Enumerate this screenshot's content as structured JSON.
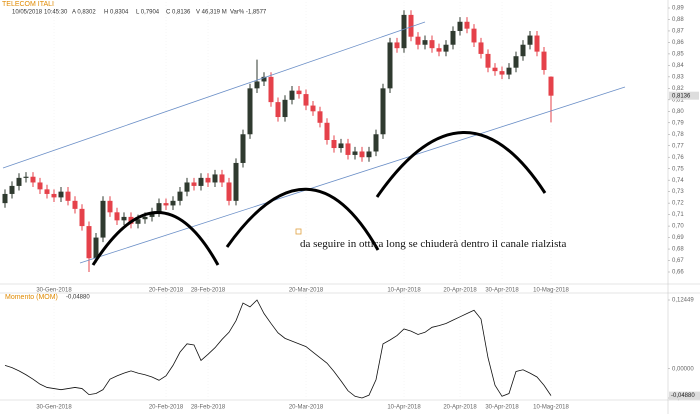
{
  "header": {
    "title": "TELECOM ITALI",
    "info": [
      "10/05/2018",
      "10:45:30",
      "A 0,8302",
      "H 0,8304",
      "L 0,7904",
      "C 0,8136",
      "V 46,319 M",
      "Var% -1,8577"
    ]
  },
  "chart_data": [
    {
      "type": "candlestick",
      "up_color": "#2f3a2f",
      "down_color": "#e5414a",
      "grid": false,
      "annotation": "da seguire in ottica long se chiuderà dentro il canale rialzista",
      "current_label": "0,8136",
      "categories": [
        null,
        null,
        null,
        null,
        null,
        null,
        null,
        "30-Gen-2018",
        null,
        null,
        null,
        null,
        null,
        null,
        null,
        null,
        null,
        null,
        null,
        null,
        null,
        null,
        null,
        "20-Feb-2018",
        null,
        null,
        null,
        null,
        null,
        "28-Feb-2018",
        null,
        null,
        null,
        null,
        null,
        null,
        null,
        null,
        null,
        null,
        null,
        null,
        null,
        "20-Mar-2018",
        null,
        null,
        null,
        null,
        null,
        null,
        null,
        null,
        null,
        null,
        null,
        null,
        null,
        "10-Apr-2018",
        null,
        null,
        null,
        null,
        null,
        null,
        null,
        "20-Apr-2018",
        null,
        null,
        null,
        null,
        null,
        "30-Apr-2018",
        null,
        null,
        null,
        null,
        null,
        null,
        "10-Mag-2018"
      ],
      "open": [
        0.72,
        0.728,
        0.735,
        0.742,
        0.743,
        0.738,
        0.732,
        0.728,
        0.725,
        0.73,
        0.722,
        0.715,
        0.7,
        0.672,
        0.69,
        0.722,
        0.712,
        0.705,
        0.708,
        0.702,
        0.706,
        0.708,
        0.712,
        0.72,
        0.718,
        0.722,
        0.73,
        0.738,
        0.735,
        0.742,
        0.738,
        0.745,
        0.738,
        0.722,
        0.755,
        0.78,
        0.82,
        0.826,
        0.83,
        0.808,
        0.795,
        0.81,
        0.818,
        0.815,
        0.805,
        0.8,
        0.79,
        0.775,
        0.768,
        0.772,
        0.762,
        0.765,
        0.76,
        0.765,
        0.78,
        0.82,
        0.86,
        0.855,
        0.884,
        0.865,
        0.858,
        0.862,
        0.855,
        0.852,
        0.858,
        0.87,
        0.878,
        0.872,
        0.86,
        0.85,
        0.838,
        0.835,
        0.832,
        0.838,
        0.848,
        0.858,
        0.866,
        0.852,
        0.8302
      ],
      "high": [
        0.732,
        0.739,
        0.746,
        0.747,
        0.747,
        0.742,
        0.736,
        0.732,
        0.734,
        0.734,
        0.726,
        0.719,
        0.704,
        0.694,
        0.726,
        0.726,
        0.716,
        0.712,
        0.712,
        0.71,
        0.712,
        0.716,
        0.724,
        0.724,
        0.726,
        0.734,
        0.742,
        0.742,
        0.746,
        0.746,
        0.749,
        0.749,
        0.742,
        0.759,
        0.784,
        0.824,
        0.845,
        0.834,
        0.834,
        0.812,
        0.814,
        0.822,
        0.822,
        0.819,
        0.809,
        0.804,
        0.794,
        0.779,
        0.776,
        0.776,
        0.769,
        0.769,
        0.769,
        0.784,
        0.824,
        0.864,
        0.864,
        0.888,
        0.888,
        0.869,
        0.866,
        0.866,
        0.859,
        0.862,
        0.874,
        0.882,
        0.882,
        0.876,
        0.864,
        0.854,
        0.842,
        0.839,
        0.842,
        0.852,
        0.862,
        0.87,
        0.87,
        0.856,
        0.8304
      ],
      "low": [
        0.716,
        0.724,
        0.731,
        0.738,
        0.734,
        0.728,
        0.724,
        0.721,
        0.721,
        0.718,
        0.711,
        0.696,
        0.66,
        0.668,
        0.686,
        0.708,
        0.701,
        0.701,
        0.698,
        0.698,
        0.702,
        0.704,
        0.708,
        0.714,
        0.714,
        0.718,
        0.726,
        0.731,
        0.731,
        0.734,
        0.734,
        0.734,
        0.718,
        0.718,
        0.751,
        0.776,
        0.816,
        0.822,
        0.804,
        0.791,
        0.791,
        0.806,
        0.811,
        0.801,
        0.796,
        0.786,
        0.771,
        0.764,
        0.764,
        0.758,
        0.758,
        0.756,
        0.756,
        0.761,
        0.776,
        0.816,
        0.851,
        0.851,
        0.861,
        0.854,
        0.854,
        0.851,
        0.848,
        0.848,
        0.854,
        0.866,
        0.868,
        0.856,
        0.846,
        0.834,
        0.831,
        0.828,
        0.828,
        0.834,
        0.844,
        0.854,
        0.848,
        0.832,
        0.7904
      ],
      "close": [
        0.728,
        0.735,
        0.742,
        0.743,
        0.738,
        0.732,
        0.728,
        0.725,
        0.73,
        0.722,
        0.715,
        0.7,
        0.672,
        0.69,
        0.722,
        0.712,
        0.705,
        0.708,
        0.702,
        0.706,
        0.708,
        0.712,
        0.72,
        0.718,
        0.722,
        0.73,
        0.738,
        0.735,
        0.742,
        0.738,
        0.745,
        0.738,
        0.722,
        0.755,
        0.78,
        0.82,
        0.826,
        0.83,
        0.808,
        0.795,
        0.81,
        0.818,
        0.815,
        0.805,
        0.8,
        0.79,
        0.775,
        0.768,
        0.772,
        0.762,
        0.765,
        0.76,
        0.765,
        0.78,
        0.82,
        0.86,
        0.855,
        0.884,
        0.865,
        0.858,
        0.862,
        0.855,
        0.852,
        0.858,
        0.87,
        0.878,
        0.872,
        0.86,
        0.85,
        0.838,
        0.835,
        0.832,
        0.838,
        0.848,
        0.858,
        0.866,
        0.852,
        0.836,
        0.8136
      ],
      "ylim": [
        0.66,
        0.89
      ],
      "yticks": [
        {
          "value": 0.89,
          "label": "0,89"
        },
        {
          "value": 0.88,
          "label": "0,88"
        },
        {
          "value": 0.87,
          "label": "0,87"
        },
        {
          "value": 0.86,
          "label": "0,86"
        },
        {
          "value": 0.85,
          "label": "0,85"
        },
        {
          "value": 0.84,
          "label": "0,84"
        },
        {
          "value": 0.83,
          "label": "0,83"
        },
        {
          "value": 0.82,
          "label": "0,82"
        },
        {
          "value": 0.81,
          "label": "0,81"
        },
        {
          "value": 0.8,
          "label": "0,80"
        },
        {
          "value": 0.79,
          "label": "0,79"
        },
        {
          "value": 0.78,
          "label": "0,78"
        },
        {
          "value": 0.77,
          "label": "0,77"
        },
        {
          "value": 0.76,
          "label": "0,76"
        },
        {
          "value": 0.75,
          "label": "0,75"
        },
        {
          "value": 0.74,
          "label": "0,74"
        },
        {
          "value": 0.73,
          "label": "0,73"
        },
        {
          "value": 0.72,
          "label": "0,72"
        },
        {
          "value": 0.71,
          "label": "0,71"
        },
        {
          "value": 0.7,
          "label": "0,70"
        },
        {
          "value": 0.69,
          "label": "0,69"
        },
        {
          "value": 0.68,
          "label": "0,68"
        },
        {
          "value": 0.67,
          "label": "0,67"
        },
        {
          "value": 0.66,
          "label": "0,66"
        }
      ]
    },
    {
      "type": "line",
      "title": "Momento (MOM)",
      "current_label": "-0,04880",
      "categories": [
        null,
        null,
        null,
        null,
        null,
        null,
        null,
        "30-Gen-2018",
        null,
        null,
        null,
        null,
        null,
        null,
        null,
        null,
        null,
        null,
        null,
        null,
        null,
        null,
        null,
        "20-Feb-2018",
        null,
        null,
        null,
        null,
        null,
        "28-Feb-2018",
        null,
        null,
        null,
        null,
        null,
        null,
        null,
        null,
        null,
        null,
        null,
        null,
        null,
        "20-Mar-2018",
        null,
        null,
        null,
        null,
        null,
        null,
        null,
        null,
        null,
        null,
        null,
        null,
        null,
        "10-Apr-2018",
        null,
        null,
        null,
        null,
        null,
        null,
        null,
        "20-Apr-2018",
        null,
        null,
        null,
        null,
        null,
        "30-Apr-2018",
        null,
        null,
        null,
        null,
        null,
        null,
        "10-Mag-2018"
      ],
      "series": [
        {
          "name": "Momento (MOM)",
          "color": "#111111",
          "values": [
            0.006,
            0.002,
            -0.004,
            -0.011,
            -0.019,
            -0.028,
            -0.034,
            -0.036,
            -0.038,
            -0.036,
            -0.034,
            -0.036,
            -0.047,
            -0.045,
            -0.038,
            -0.019,
            -0.013,
            -0.008,
            -0.004,
            -0.008,
            -0.011,
            -0.015,
            -0.021,
            -0.013,
            0.006,
            0.03,
            0.045,
            0.043,
            0.015,
            0.026,
            0.038,
            0.053,
            0.066,
            0.087,
            0.119,
            0.112,
            0.12449,
            0.1,
            0.082,
            0.065,
            0.055,
            0.05,
            0.045,
            0.04,
            0.03,
            0.02,
            0.01,
            -0.005,
            -0.022,
            -0.04,
            -0.05,
            -0.05311,
            -0.048,
            -0.02,
            0.045,
            0.052,
            0.06,
            0.072,
            0.068,
            0.062,
            0.066,
            0.075,
            0.078,
            0.082,
            0.088,
            0.094,
            0.1,
            0.106,
            0.09,
            0.02,
            -0.03,
            -0.05,
            -0.045,
            -0.005,
            -0.002,
            -0.008,
            -0.015,
            -0.03,
            -0.0488
          ]
        }
      ],
      "ylim": [
        -0.05311,
        0.12449
      ],
      "yticks": [
        {
          "value": 0.12449,
          "label": "0,12449"
        },
        {
          "value": 0,
          "label": "0,00000"
        },
        {
          "value": -0.05311,
          "label": "-0,05311"
        }
      ]
    }
  ]
}
